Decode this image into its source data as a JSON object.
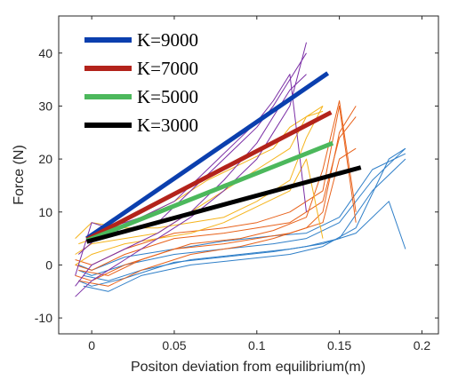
{
  "chart_data": {
    "type": "line",
    "title": "",
    "xlabel": "Positon deviation from equilibrium(m)",
    "ylabel": "Force (N)",
    "xlim": [
      -0.02,
      0.21
    ],
    "ylim": [
      -13,
      47
    ],
    "xticks": [
      0,
      0.05,
      0.1,
      0.15,
      0.2
    ],
    "xtick_labels": [
      "0",
      "0.05",
      "0.1",
      "0.15",
      "0.2"
    ],
    "yticks": [
      -10,
      0,
      10,
      20,
      30,
      40
    ],
    "ytick_labels": [
      "-10",
      "0",
      "10",
      "20",
      "30",
      "40"
    ],
    "grid": false,
    "legend_position": "top-left",
    "fits": [
      {
        "name": "K=9000",
        "color": "#0b3fae",
        "x": [
          -0.003,
          0.143
        ],
        "y": [
          5.0,
          36.2
        ]
      },
      {
        "name": "K=7000",
        "color": "#b3231b",
        "x": [
          -0.003,
          0.145
        ],
        "y": [
          4.8,
          28.8
        ]
      },
      {
        "name": "K=5000",
        "color": "#4cb85c",
        "x": [
          -0.003,
          0.146
        ],
        "y": [
          4.6,
          23.0
        ]
      },
      {
        "name": "K=3000",
        "color": "#000000",
        "x": [
          -0.003,
          0.163
        ],
        "y": [
          4.4,
          18.4
        ]
      }
    ],
    "trials": [
      {
        "color": "#2f7fc8",
        "x": [
          -0.008,
          0.0,
          0.02,
          0.05,
          0.08,
          0.11,
          0.13,
          0.15,
          0.17,
          0.19
        ],
        "y": [
          -3.0,
          -4.0,
          -2.5,
          0.5,
          1.5,
          2.5,
          3.5,
          5.0,
          14.0,
          20.0
        ]
      },
      {
        "color": "#2f7fc8",
        "x": [
          -0.008,
          0.0,
          0.02,
          0.05,
          0.08,
          0.11,
          0.13,
          0.15,
          0.17,
          0.19
        ],
        "y": [
          -1.0,
          -2.0,
          0.0,
          2.0,
          3.0,
          4.0,
          5.0,
          8.0,
          16.0,
          22.0
        ]
      },
      {
        "color": "#2f7fc8",
        "x": [
          -0.008,
          0.0,
          0.02,
          0.05,
          0.08,
          0.11,
          0.13,
          0.15,
          0.17,
          0.19
        ],
        "y": [
          0.0,
          -1.0,
          1.5,
          3.0,
          4.5,
          5.5,
          6.0,
          9.0,
          18.0,
          21.0
        ]
      },
      {
        "color": "#2f7fc8",
        "x": [
          -0.005,
          0.01,
          0.03,
          0.06,
          0.09,
          0.12,
          0.14,
          0.16,
          0.18,
          0.19
        ],
        "y": [
          -2.0,
          -3.0,
          -1.0,
          1.0,
          2.0,
          3.0,
          4.0,
          6.0,
          12.0,
          3.0
        ]
      },
      {
        "color": "#2f7fc8",
        "x": [
          -0.005,
          0.01,
          0.03,
          0.06,
          0.09,
          0.12,
          0.14,
          0.16,
          0.18,
          0.19
        ],
        "y": [
          -4.0,
          -5.0,
          -2.0,
          0.0,
          1.0,
          2.0,
          3.5,
          7.0,
          20.0,
          22.0
        ]
      },
      {
        "color": "#e8621b",
        "x": [
          -0.01,
          0.0,
          0.02,
          0.05,
          0.08,
          0.1,
          0.12,
          0.14,
          0.15,
          0.16
        ],
        "y": [
          -2.0,
          -3.0,
          0.0,
          3.0,
          4.0,
          5.0,
          6.0,
          8.0,
          20.0,
          22.0
        ]
      },
      {
        "color": "#e8621b",
        "x": [
          -0.01,
          0.0,
          0.02,
          0.05,
          0.08,
          0.1,
          0.12,
          0.14,
          0.15,
          0.16
        ],
        "y": [
          0.0,
          -1.0,
          2.0,
          5.0,
          6.0,
          7.0,
          8.0,
          12.0,
          24.0,
          28.0
        ]
      },
      {
        "color": "#e8621b",
        "x": [
          -0.01,
          0.0,
          0.02,
          0.05,
          0.08,
          0.1,
          0.12,
          0.14,
          0.15,
          0.16
        ],
        "y": [
          1.0,
          0.0,
          3.0,
          6.0,
          7.0,
          8.0,
          10.0,
          14.0,
          30.0,
          8.0
        ]
      },
      {
        "color": "#e8621b",
        "x": [
          -0.008,
          0.01,
          0.03,
          0.06,
          0.09,
          0.11,
          0.13,
          0.14,
          0.15,
          0.16
        ],
        "y": [
          -3.0,
          -4.0,
          -1.0,
          2.0,
          3.5,
          5.0,
          7.0,
          10.0,
          25.0,
          30.0
        ]
      },
      {
        "color": "#e8621b",
        "x": [
          -0.008,
          0.01,
          0.03,
          0.06,
          0.09,
          0.11,
          0.13,
          0.14,
          0.15,
          0.16
        ],
        "y": [
          -1.0,
          -2.0,
          1.0,
          4.0,
          5.0,
          6.5,
          9.0,
          18.0,
          31.0,
          10.0
        ]
      },
      {
        "color": "#f5b41c",
        "x": [
          -0.01,
          0.0,
          0.02,
          0.04,
          0.06,
          0.08,
          0.1,
          0.12,
          0.13,
          0.14
        ],
        "y": [
          5.0,
          8.0,
          7.0,
          7.0,
          8.0,
          9.0,
          12.0,
          16.0,
          24.0,
          30.0
        ]
      },
      {
        "color": "#f5b41c",
        "x": [
          -0.01,
          0.0,
          0.02,
          0.04,
          0.06,
          0.08,
          0.1,
          0.12,
          0.13,
          0.14
        ],
        "y": [
          2.0,
          4.0,
          5.0,
          6.0,
          10.0,
          14.0,
          18.0,
          22.0,
          28.0,
          29.0
        ]
      },
      {
        "color": "#f5b41c",
        "x": [
          -0.01,
          0.0,
          0.02,
          0.04,
          0.06,
          0.08,
          0.1,
          0.12,
          0.13,
          0.14
        ],
        "y": [
          0.0,
          2.0,
          4.0,
          5.0,
          6.0,
          8.0,
          11.0,
          14.0,
          20.0,
          5.0
        ]
      },
      {
        "color": "#f5b41c",
        "x": [
          -0.008,
          0.01,
          0.03,
          0.05,
          0.07,
          0.09,
          0.11,
          0.12,
          0.13,
          0.14
        ],
        "y": [
          4.0,
          6.0,
          9.0,
          12.0,
          16.0,
          19.0,
          22.0,
          26.0,
          28.0,
          30.0
        ]
      },
      {
        "color": "#7b2fa6",
        "x": [
          -0.01,
          0.0,
          0.02,
          0.04,
          0.06,
          0.08,
          0.1,
          0.11,
          0.12,
          0.13
        ],
        "y": [
          -2.0,
          8.0,
          6.0,
          8.0,
          14.0,
          20.0,
          26.0,
          30.0,
          35.0,
          40.0
        ]
      },
      {
        "color": "#7b2fa6",
        "x": [
          -0.01,
          0.0,
          0.02,
          0.04,
          0.06,
          0.08,
          0.1,
          0.11,
          0.12,
          0.13
        ],
        "y": [
          -4.0,
          0.0,
          3.0,
          6.0,
          10.0,
          16.0,
          23.0,
          28.0,
          33.0,
          36.0
        ]
      },
      {
        "color": "#7b2fa6",
        "x": [
          -0.01,
          0.0,
          0.02,
          0.04,
          0.06,
          0.08,
          0.1,
          0.11,
          0.12,
          0.13
        ],
        "y": [
          -6.0,
          -3.0,
          1.0,
          5.0,
          9.0,
          14.0,
          20.0,
          25.0,
          30.0,
          42.0
        ]
      },
      {
        "color": "#7b2fa6",
        "x": [
          -0.008,
          0.01,
          0.03,
          0.05,
          0.07,
          0.09,
          0.1,
          0.11,
          0.12,
          0.13
        ],
        "y": [
          2.0,
          7.0,
          9.0,
          12.0,
          18.0,
          24.0,
          27.0,
          31.0,
          36.0,
          10.0
        ]
      }
    ]
  }
}
